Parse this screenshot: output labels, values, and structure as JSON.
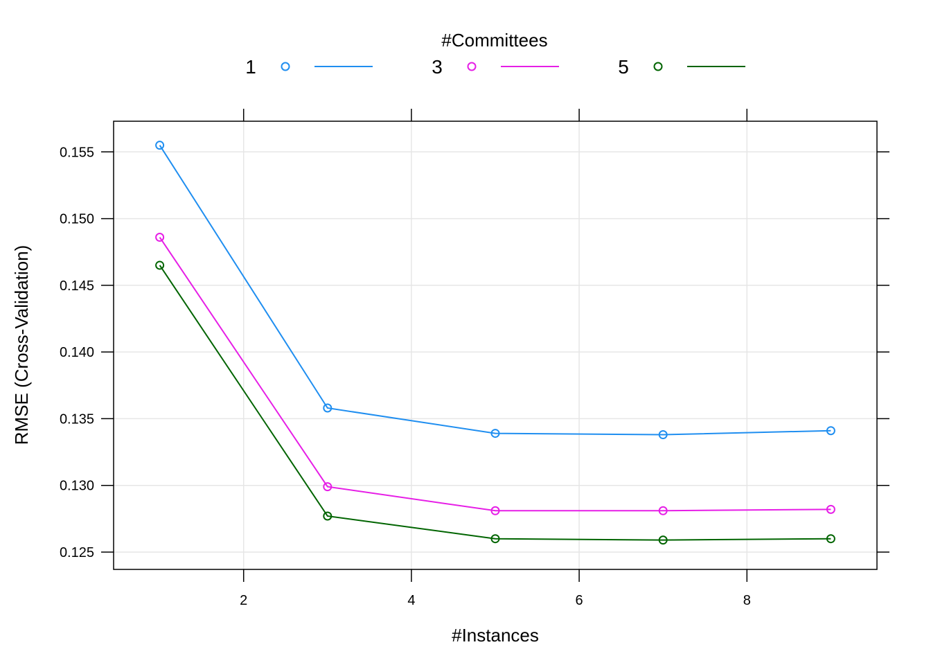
{
  "chart_data": {
    "type": "line",
    "title": "",
    "xlabel": "#Instances",
    "ylabel": "RMSE (Cross-Validation)",
    "xlim": [
      0.45,
      9.55
    ],
    "ylim": [
      0.1237,
      0.1573
    ],
    "grid": true,
    "x_ticks": [
      2,
      4,
      6,
      8
    ],
    "y_ticks": [
      0.125,
      0.13,
      0.135,
      0.14,
      0.145,
      0.15,
      0.155
    ],
    "x_tick_labels": [
      "2",
      "4",
      "6",
      "8"
    ],
    "y_tick_labels": [
      "0.125",
      "0.130",
      "0.135",
      "0.140",
      "0.145",
      "0.150",
      "0.155"
    ],
    "legend": {
      "title": "#Committees",
      "placement": "top"
    },
    "x": [
      1,
      3,
      5,
      7,
      9
    ],
    "series": [
      {
        "name": "1",
        "color": "#1f8ef0",
        "values": [
          0.1555,
          0.1358,
          0.1339,
          0.1338,
          0.1341
        ]
      },
      {
        "name": "3",
        "color": "#e61ee6",
        "values": [
          0.1486,
          0.1299,
          0.1281,
          0.1281,
          0.1282
        ]
      },
      {
        "name": "5",
        "color": "#006400",
        "values": [
          0.1465,
          0.1277,
          0.126,
          0.1259,
          0.126
        ]
      }
    ]
  }
}
